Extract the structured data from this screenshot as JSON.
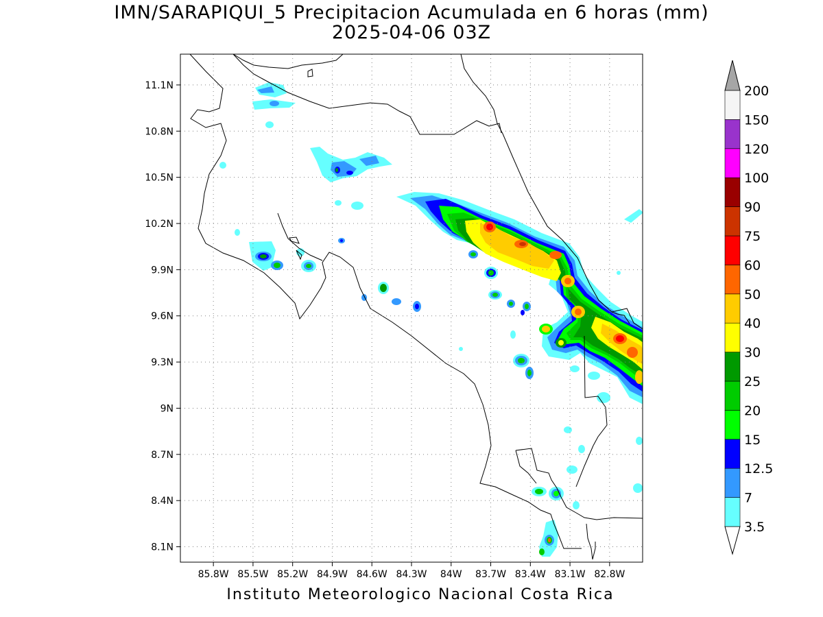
{
  "title": {
    "line1": "IMN/SARAPIQUI_5 Precipitacion Acumulada en 6 horas (mm)",
    "line2": "2025-04-06 03Z"
  },
  "footer": "Instituto Meteorologico Nacional Costa Rica",
  "map": {
    "lon_range": [
      -86.05,
      -82.55
    ],
    "lat_range": [
      8.0,
      11.3
    ],
    "lon_ticks": [
      {
        "value": -85.8,
        "label": "85.8W"
      },
      {
        "value": -85.5,
        "label": "85.5W"
      },
      {
        "value": -85.2,
        "label": "85.2W"
      },
      {
        "value": -84.9,
        "label": "84.9W"
      },
      {
        "value": -84.6,
        "label": "84.6W"
      },
      {
        "value": -84.3,
        "label": "84.3W"
      },
      {
        "value": -84.0,
        "label": "84W"
      },
      {
        "value": -83.7,
        "label": "83.7W"
      },
      {
        "value": -83.4,
        "label": "83.4W"
      },
      {
        "value": -83.1,
        "label": "83.1W"
      },
      {
        "value": -82.8,
        "label": "82.8W"
      }
    ],
    "lat_ticks": [
      {
        "value": 11.1,
        "label": "11.1N"
      },
      {
        "value": 10.8,
        "label": "10.8N"
      },
      {
        "value": 10.5,
        "label": "10.5N"
      },
      {
        "value": 10.2,
        "label": "10.2N"
      },
      {
        "value": 9.9,
        "label": "9.9N"
      },
      {
        "value": 9.6,
        "label": "9.6N"
      },
      {
        "value": 9.3,
        "label": "9.3N"
      },
      {
        "value": 9.0,
        "label": "9N"
      },
      {
        "value": 8.7,
        "label": "8.7N"
      },
      {
        "value": 8.4,
        "label": "8.4N"
      },
      {
        "value": 8.1,
        "label": "8.1N"
      }
    ],
    "grid": true,
    "grid_style": "dotted",
    "coastline_color": "#000000"
  },
  "colorbar": {
    "levels": [
      "3.5",
      "7",
      "12.5",
      "15",
      "20",
      "25",
      "30",
      "40",
      "50",
      "60",
      "75",
      "90",
      "100",
      "120",
      "150",
      "200"
    ],
    "colors": [
      "#66ffff",
      "#3399ff",
      "#0000ff",
      "#00ff00",
      "#00cc00",
      "#009900",
      "#ffff00",
      "#ffcc00",
      "#ff6600",
      "#ff0000",
      "#cc3300",
      "#990000",
      "#ff00ff",
      "#9933cc",
      "#f5f5f5",
      "#a6a6a6"
    ],
    "under_color": "#ffffff"
  }
}
